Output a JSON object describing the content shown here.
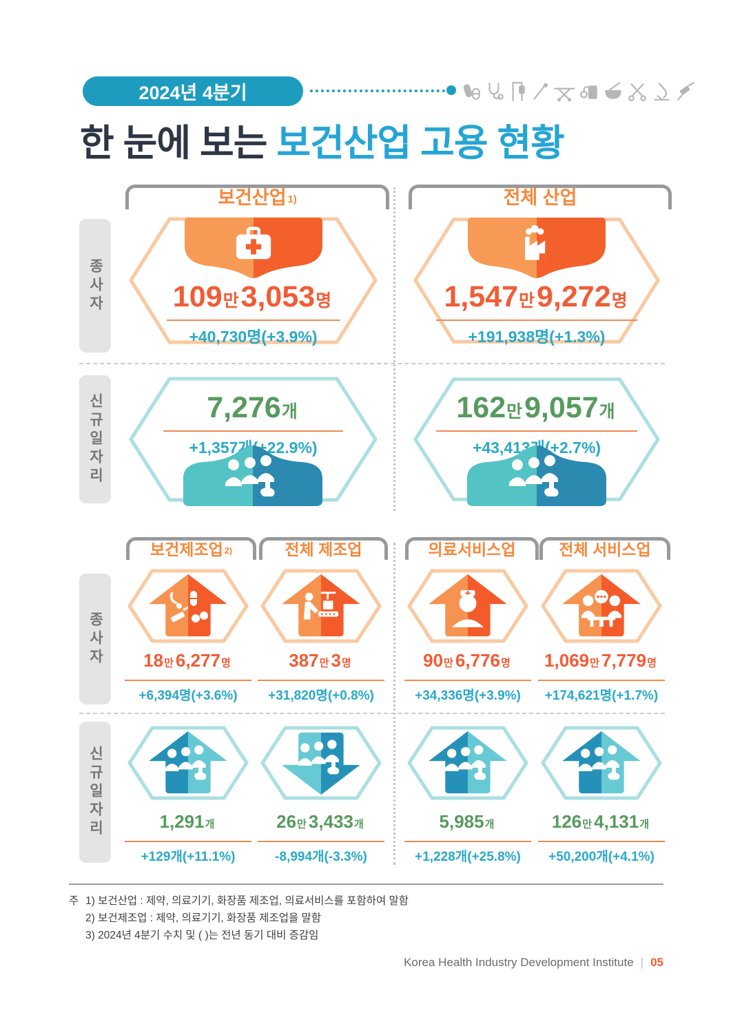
{
  "header": {
    "badge": "2024년 4분기",
    "title_dark": "한 눈에 보는 ",
    "title_accent": "보건산업 고용 현황",
    "icon_names": [
      "pills",
      "stethoscope",
      "iv-stand",
      "pen",
      "stretcher",
      "monitor-bag",
      "mortar-pestle",
      "scissors",
      "microscope",
      "syringe"
    ]
  },
  "colors": {
    "accent_teal": "#1e9cc0",
    "title_accent": "#25a5d5",
    "accent_orange": "#f25c35",
    "green": "#579a5e",
    "change_teal": "#29a9c9",
    "page_orange": "#f15a29"
  },
  "row_labels": {
    "workers": "종사자",
    "jobs": "신규일자리"
  },
  "section1": {
    "columns": [
      {
        "header": "보건산업",
        "sup": "1)",
        "icon": "first-aid-kit",
        "workers_value": [
          [
            "109",
            0
          ],
          [
            "만",
            1
          ],
          [
            "3,053",
            0
          ],
          [
            "명",
            1
          ]
        ],
        "workers_change": "+40,730명(+3.9%)",
        "jobs_value": [
          [
            "7,276",
            0
          ],
          [
            "개",
            1
          ]
        ],
        "jobs_change": "+1,357개(+22.9%)"
      },
      {
        "header": "전체 산업",
        "sup": "",
        "icon": "factory",
        "workers_value": [
          [
            "1,547",
            0
          ],
          [
            "만",
            1
          ],
          [
            "9,272",
            0
          ],
          [
            "명",
            1
          ]
        ],
        "workers_change": "+191,938명(+1.3%)",
        "jobs_value": [
          [
            "162",
            0
          ],
          [
            "만",
            1
          ],
          [
            "9,057",
            0
          ],
          [
            "개",
            1
          ]
        ],
        "jobs_change": "+43,413개(+2.7%)"
      }
    ]
  },
  "section2": {
    "columns": [
      {
        "header": "보건제조업",
        "sup": "2)",
        "icon": "medical-tools",
        "workers_value": [
          [
            "18",
            0
          ],
          [
            "만",
            1
          ],
          [
            "6,277",
            0
          ],
          [
            "명",
            1
          ]
        ],
        "workers_change": "+6,394명(+3.6%)",
        "jobs_value": [
          [
            "1,291",
            0
          ],
          [
            "개",
            1
          ]
        ],
        "jobs_change": "+129개(+11.1%)",
        "jobs_dir": "up"
      },
      {
        "header": "전체 제조업",
        "sup": "",
        "icon": "factory-worker",
        "workers_value": [
          [
            "387",
            0
          ],
          [
            "만",
            1
          ],
          [
            "3",
            0
          ],
          [
            "명",
            1
          ]
        ],
        "workers_change": "+31,820명(+0.8%)",
        "jobs_value": [
          [
            "26",
            0
          ],
          [
            "만",
            1
          ],
          [
            "3,433",
            0
          ],
          [
            "개",
            1
          ]
        ],
        "jobs_change": "-8,994개(-3.3%)",
        "jobs_dir": "down"
      },
      {
        "header": "의료서비스업",
        "sup": "",
        "icon": "nurse",
        "workers_value": [
          [
            "90",
            0
          ],
          [
            "만",
            1
          ],
          [
            "6,776",
            0
          ],
          [
            "명",
            1
          ]
        ],
        "workers_change": "+34,336명(+3.9%)",
        "jobs_value": [
          [
            "5,985",
            0
          ],
          [
            "개",
            1
          ]
        ],
        "jobs_change": "+1,228개(+25.8%)",
        "jobs_dir": "up"
      },
      {
        "header": "전체 서비스업",
        "sup": "",
        "icon": "people-table",
        "workers_value": [
          [
            "1,069",
            0
          ],
          [
            "만",
            1
          ],
          [
            "7,779",
            0
          ],
          [
            "명",
            1
          ]
        ],
        "workers_change": "+174,621명(+1.7%)",
        "jobs_value": [
          [
            "126",
            0
          ],
          [
            "만",
            1
          ],
          [
            "4,131",
            0
          ],
          [
            "개",
            1
          ]
        ],
        "jobs_change": "+50,200개(+4.1%)",
        "jobs_dir": "up"
      }
    ]
  },
  "notes": {
    "prefix": "주",
    "items": [
      "1) 보건산업 : 제약, 의료기기, 화장품 제조업, 의료서비스를 포함하여 말함",
      "2) 보건제조업 : 제약, 의료기기, 화장품 제조업을 말함",
      "3) 2024년 4분기 수치 및 (  )는 전년 동기 대비 증감임"
    ]
  },
  "footer": {
    "org": "Korea Health Industry Development Institute",
    "sep": "|",
    "page": "05"
  }
}
